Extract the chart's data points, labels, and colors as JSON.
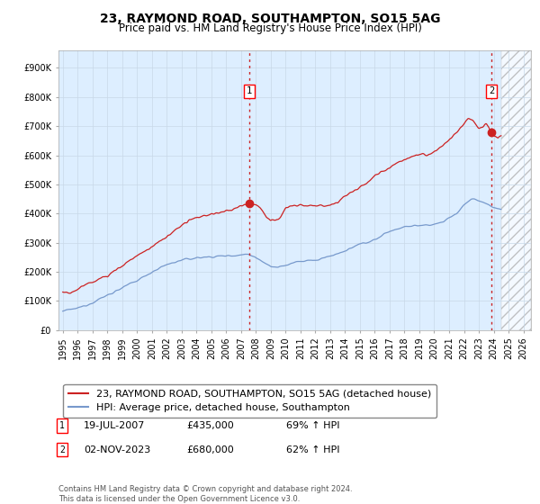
{
  "title": "23, RAYMOND ROAD, SOUTHAMPTON, SO15 5AG",
  "subtitle": "Price paid vs. HM Land Registry's House Price Index (HPI)",
  "ylabel_ticks": [
    "£0",
    "£100K",
    "£200K",
    "£300K",
    "£400K",
    "£500K",
    "£600K",
    "£700K",
    "£800K",
    "£900K"
  ],
  "ytick_values": [
    0,
    100000,
    200000,
    300000,
    400000,
    500000,
    600000,
    700000,
    800000,
    900000
  ],
  "ylim": [
    0,
    960000
  ],
  "xlim_start": 1994.7,
  "xlim_end": 2026.5,
  "xtick_years": [
    1995,
    1996,
    1997,
    1998,
    1999,
    2000,
    2001,
    2002,
    2003,
    2004,
    2005,
    2006,
    2007,
    2008,
    2009,
    2010,
    2011,
    2012,
    2013,
    2014,
    2015,
    2016,
    2017,
    2018,
    2019,
    2020,
    2021,
    2022,
    2023,
    2024,
    2025,
    2026
  ],
  "hpi_color": "#7799cc",
  "price_color": "#cc2222",
  "vline_color": "#cc2222",
  "grid_color": "#c8d8e8",
  "plot_bg": "#ddeeff",
  "bg_color": "#ffffff",
  "legend1_label": "23, RAYMOND ROAD, SOUTHAMPTON, SO15 5AG (detached house)",
  "legend2_label": "HPI: Average price, detached house, Southampton",
  "transaction1_date": "19-JUL-2007",
  "transaction1_price": "£435,000",
  "transaction1_hpi": "69% ↑ HPI",
  "transaction1_x": 2007.54,
  "transaction1_y": 435000,
  "transaction2_date": "02-NOV-2023",
  "transaction2_price": "£680,000",
  "transaction2_hpi": "62% ↑ HPI",
  "transaction2_x": 2023.84,
  "transaction2_y": 680000,
  "footnote": "Contains HM Land Registry data © Crown copyright and database right 2024.\nThis data is licensed under the Open Government Licence v3.0.",
  "title_fontsize": 10,
  "subtitle_fontsize": 8.5,
  "tick_fontsize": 7,
  "legend_fontsize": 8,
  "footnote_fontsize": 6
}
